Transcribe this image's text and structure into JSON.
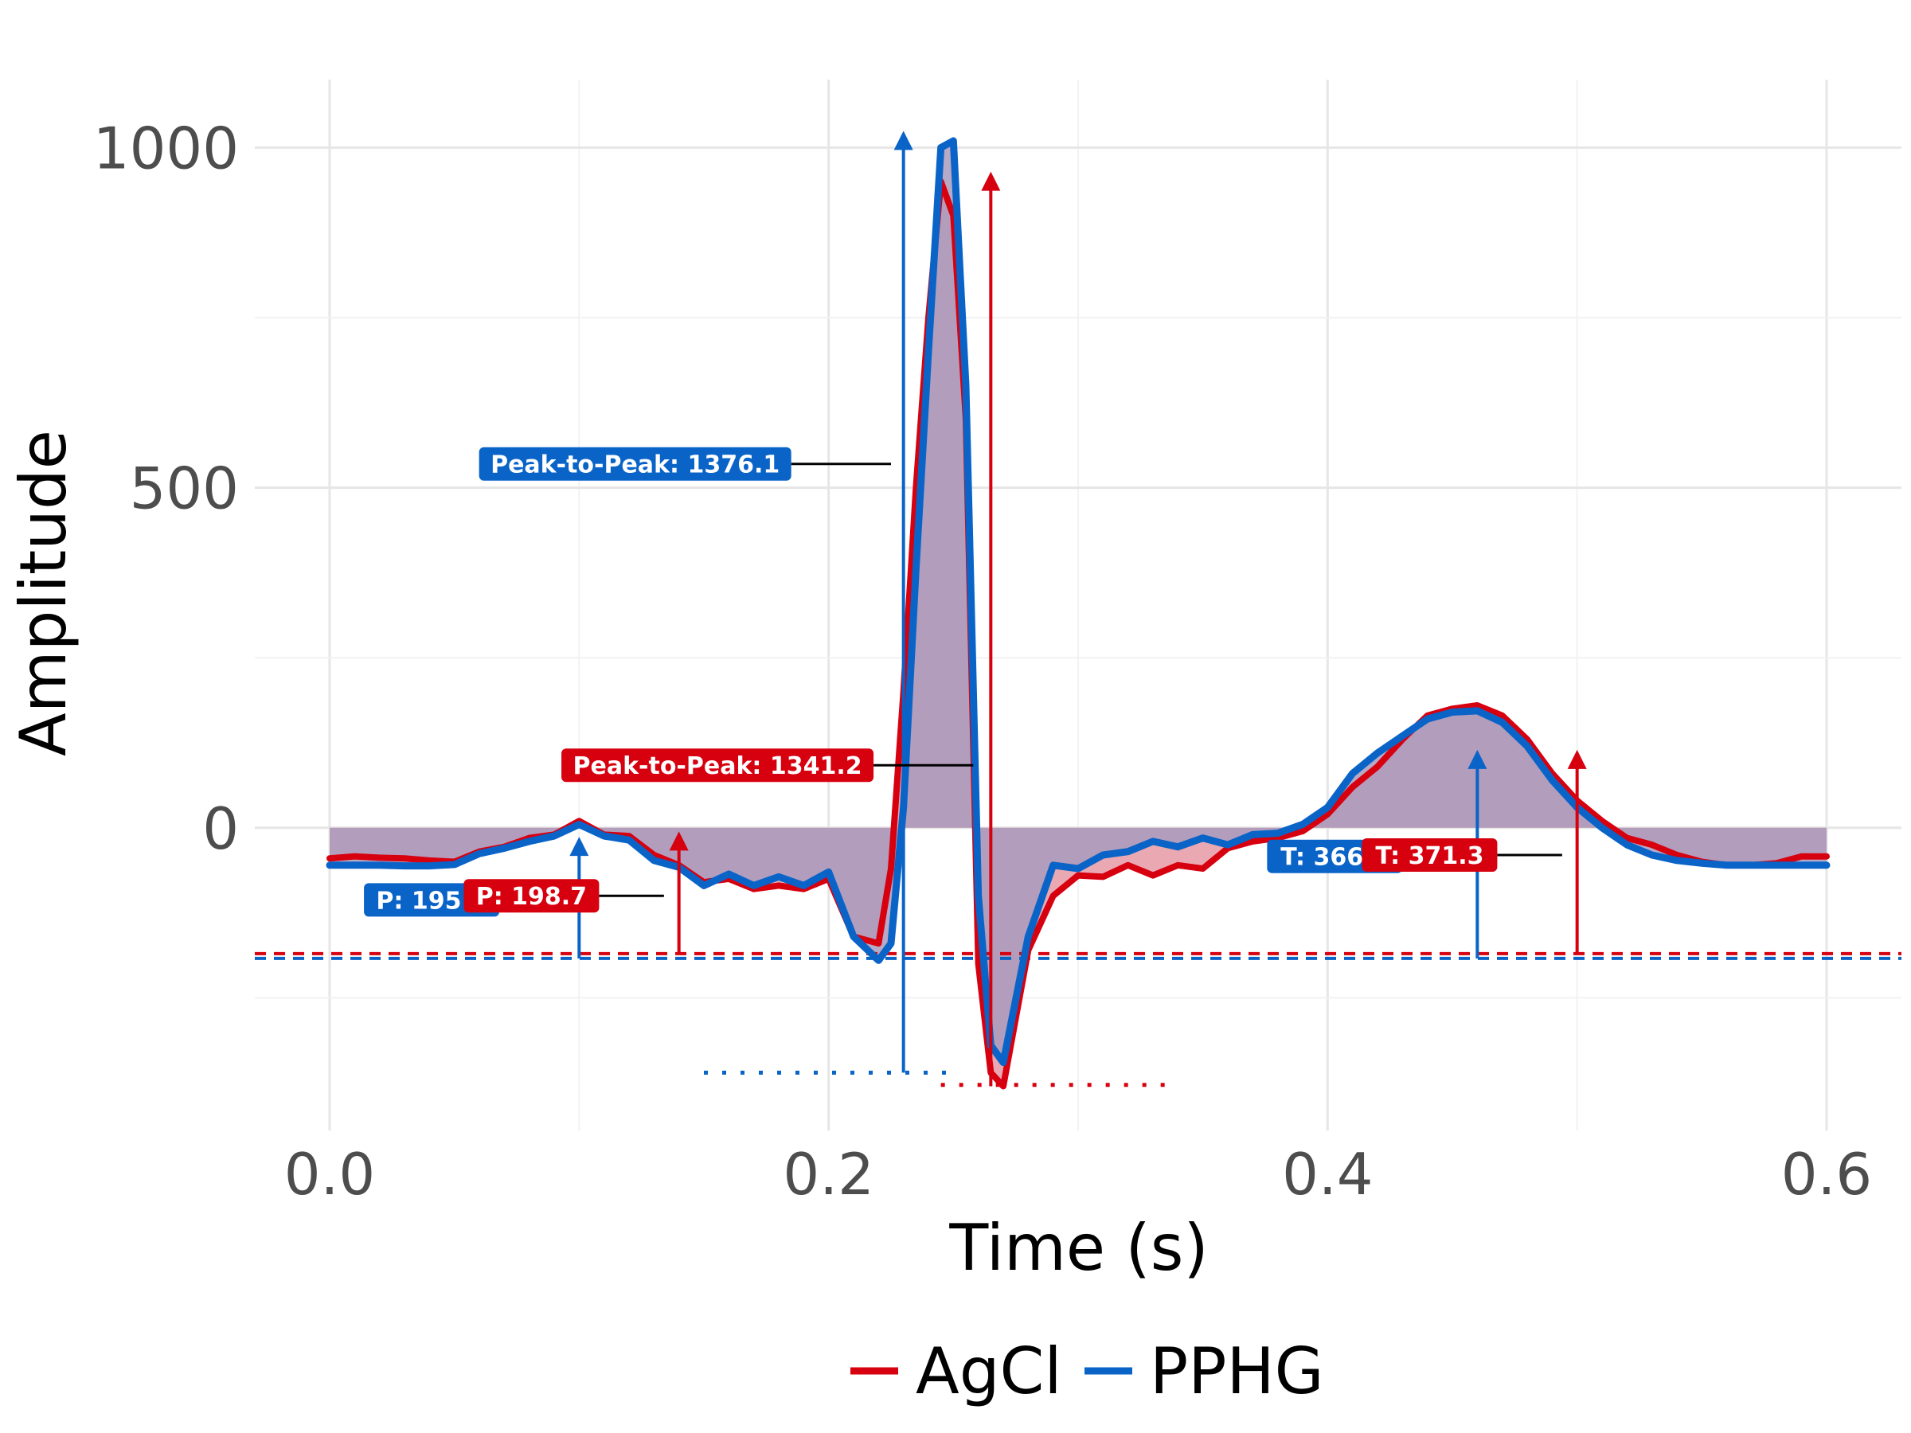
{
  "chart_data": {
    "type": "line",
    "title": "",
    "xlabel": "Time (s)",
    "ylabel": "Amplitude",
    "xlim": [
      -0.03,
      0.63
    ],
    "ylim": [
      -445,
      1100
    ],
    "x_ticks": [
      0.0,
      0.2,
      0.4,
      0.6
    ],
    "x_tick_labels": [
      "0.0",
      "0.2",
      "0.4",
      "0.6"
    ],
    "y_ticks": [
      0,
      500,
      1000
    ],
    "y_tick_labels": [
      "0",
      "500",
      "1000"
    ],
    "grid": true,
    "legend_position": "bottom",
    "colors": {
      "AgCl": "#d7000f",
      "PPHG": "#0a64c8",
      "fill": "#a99bbd",
      "grid": "#e6e6e6"
    },
    "series": [
      {
        "name": "AgCl",
        "x": [
          0.0,
          0.01,
          0.02,
          0.03,
          0.04,
          0.05,
          0.06,
          0.07,
          0.08,
          0.09,
          0.1,
          0.11,
          0.12,
          0.13,
          0.14,
          0.15,
          0.16,
          0.17,
          0.18,
          0.19,
          0.2,
          0.21,
          0.22,
          0.225,
          0.23,
          0.235,
          0.24,
          0.245,
          0.25,
          0.255,
          0.26,
          0.265,
          0.27,
          0.28,
          0.29,
          0.3,
          0.31,
          0.32,
          0.33,
          0.34,
          0.35,
          0.36,
          0.37,
          0.38,
          0.39,
          0.4,
          0.41,
          0.42,
          0.43,
          0.44,
          0.45,
          0.46,
          0.47,
          0.48,
          0.49,
          0.5,
          0.51,
          0.52,
          0.53,
          0.54,
          0.55,
          0.56,
          0.57,
          0.58,
          0.59,
          0.6
        ],
        "y": [
          -45,
          -42,
          -44,
          -45,
          -48,
          -50,
          -35,
          -28,
          -15,
          -10,
          10,
          -10,
          -12,
          -40,
          -55,
          -80,
          -75,
          -90,
          -85,
          -90,
          -75,
          -160,
          -170,
          -60,
          200,
          500,
          750,
          950,
          900,
          600,
          -200,
          -360,
          -380,
          -180,
          -100,
          -70,
          -72,
          -55,
          -70,
          -55,
          -60,
          -30,
          -20,
          -15,
          -5,
          20,
          60,
          90,
          130,
          165,
          175,
          180,
          165,
          130,
          80,
          40,
          10,
          -15,
          -25,
          -40,
          -50,
          -55,
          -55,
          -52,
          -42,
          -42
        ]
      },
      {
        "name": "PPHG",
        "x": [
          0.0,
          0.01,
          0.02,
          0.03,
          0.04,
          0.05,
          0.06,
          0.07,
          0.08,
          0.09,
          0.1,
          0.11,
          0.12,
          0.13,
          0.14,
          0.15,
          0.16,
          0.17,
          0.18,
          0.19,
          0.2,
          0.21,
          0.22,
          0.225,
          0.23,
          0.235,
          0.24,
          0.245,
          0.25,
          0.255,
          0.26,
          0.265,
          0.27,
          0.28,
          0.29,
          0.3,
          0.31,
          0.32,
          0.33,
          0.34,
          0.35,
          0.36,
          0.37,
          0.38,
          0.39,
          0.4,
          0.41,
          0.42,
          0.43,
          0.44,
          0.45,
          0.46,
          0.47,
          0.48,
          0.49,
          0.5,
          0.51,
          0.52,
          0.53,
          0.54,
          0.55,
          0.56,
          0.57,
          0.58,
          0.59,
          0.6
        ],
        "y": [
          -55,
          -55,
          -55,
          -56,
          -56,
          -54,
          -38,
          -30,
          -20,
          -12,
          5,
          -12,
          -18,
          -48,
          -58,
          -85,
          -68,
          -85,
          -72,
          -85,
          -65,
          -160,
          -195,
          -170,
          30,
          380,
          700,
          1000,
          1010,
          650,
          -100,
          -320,
          -345,
          -160,
          -55,
          -60,
          -40,
          -35,
          -20,
          -28,
          -15,
          -25,
          -10,
          -8,
          5,
          30,
          80,
          110,
          135,
          160,
          170,
          172,
          155,
          120,
          70,
          30,
          0,
          -25,
          -40,
          -48,
          -52,
          -55,
          -55,
          -55,
          -55,
          -55
        ]
      }
    ],
    "baselines": {
      "AgCl": -185,
      "PPHG": -192
    },
    "peak_markers": [
      {
        "series": "PPHG",
        "x": 0.23,
        "y_from": -360,
        "y_to": 1020,
        "color": "PPHG"
      },
      {
        "series": "AgCl",
        "x": 0.265,
        "y_from": -380,
        "y_to": 960,
        "color": "AgCl"
      },
      {
        "series": "PPHG",
        "x": 0.1,
        "y_from": -192,
        "y_to": -18,
        "color": "PPHG"
      },
      {
        "series": "AgCl",
        "x": 0.14,
        "y_from": -185,
        "y_to": -10,
        "color": "AgCl"
      },
      {
        "series": "PPHG",
        "x": 0.46,
        "y_from": -192,
        "y_to": 110,
        "color": "PPHG"
      },
      {
        "series": "AgCl",
        "x": 0.5,
        "y_from": -185,
        "y_to": 110,
        "color": "AgCl"
      }
    ],
    "min_lines": [
      {
        "series": "PPHG",
        "x1": 0.15,
        "x2": 0.25,
        "y": -360
      },
      {
        "series": "AgCl",
        "x1": 0.245,
        "x2": 0.34,
        "y": -378
      }
    ],
    "annotations": [
      {
        "text": "Peak-to-Peak: 1376.1",
        "series": "PPHG",
        "x_right": 0.185,
        "y": 535,
        "leader_x2": 0.225
      },
      {
        "text": "Peak-to-Peak: 1341.2",
        "series": "AgCl",
        "x_right": 0.218,
        "y": 92,
        "leader_x2": 0.258
      },
      {
        "text": "P: 195.5",
        "series": "PPHG",
        "x_right": 0.068,
        "y": -106,
        "leader_x2": 0.068
      },
      {
        "text": "P: 198.7",
        "series": "AgCl",
        "x_right": 0.108,
        "y": -100,
        "leader_x2": 0.134
      },
      {
        "text": "T: 366.4",
        "series": "PPHG",
        "x_right": 0.43,
        "y": -42,
        "leader_x2": 0.43
      },
      {
        "text": "T: 371.3",
        "series": "AgCl",
        "x_right": 0.468,
        "y": -40,
        "leader_x2": 0.494
      }
    ]
  },
  "legend": {
    "items": [
      {
        "label": "AgCl",
        "color": "#d7000f"
      },
      {
        "label": "PPHG",
        "color": "#0a64c8"
      }
    ]
  }
}
